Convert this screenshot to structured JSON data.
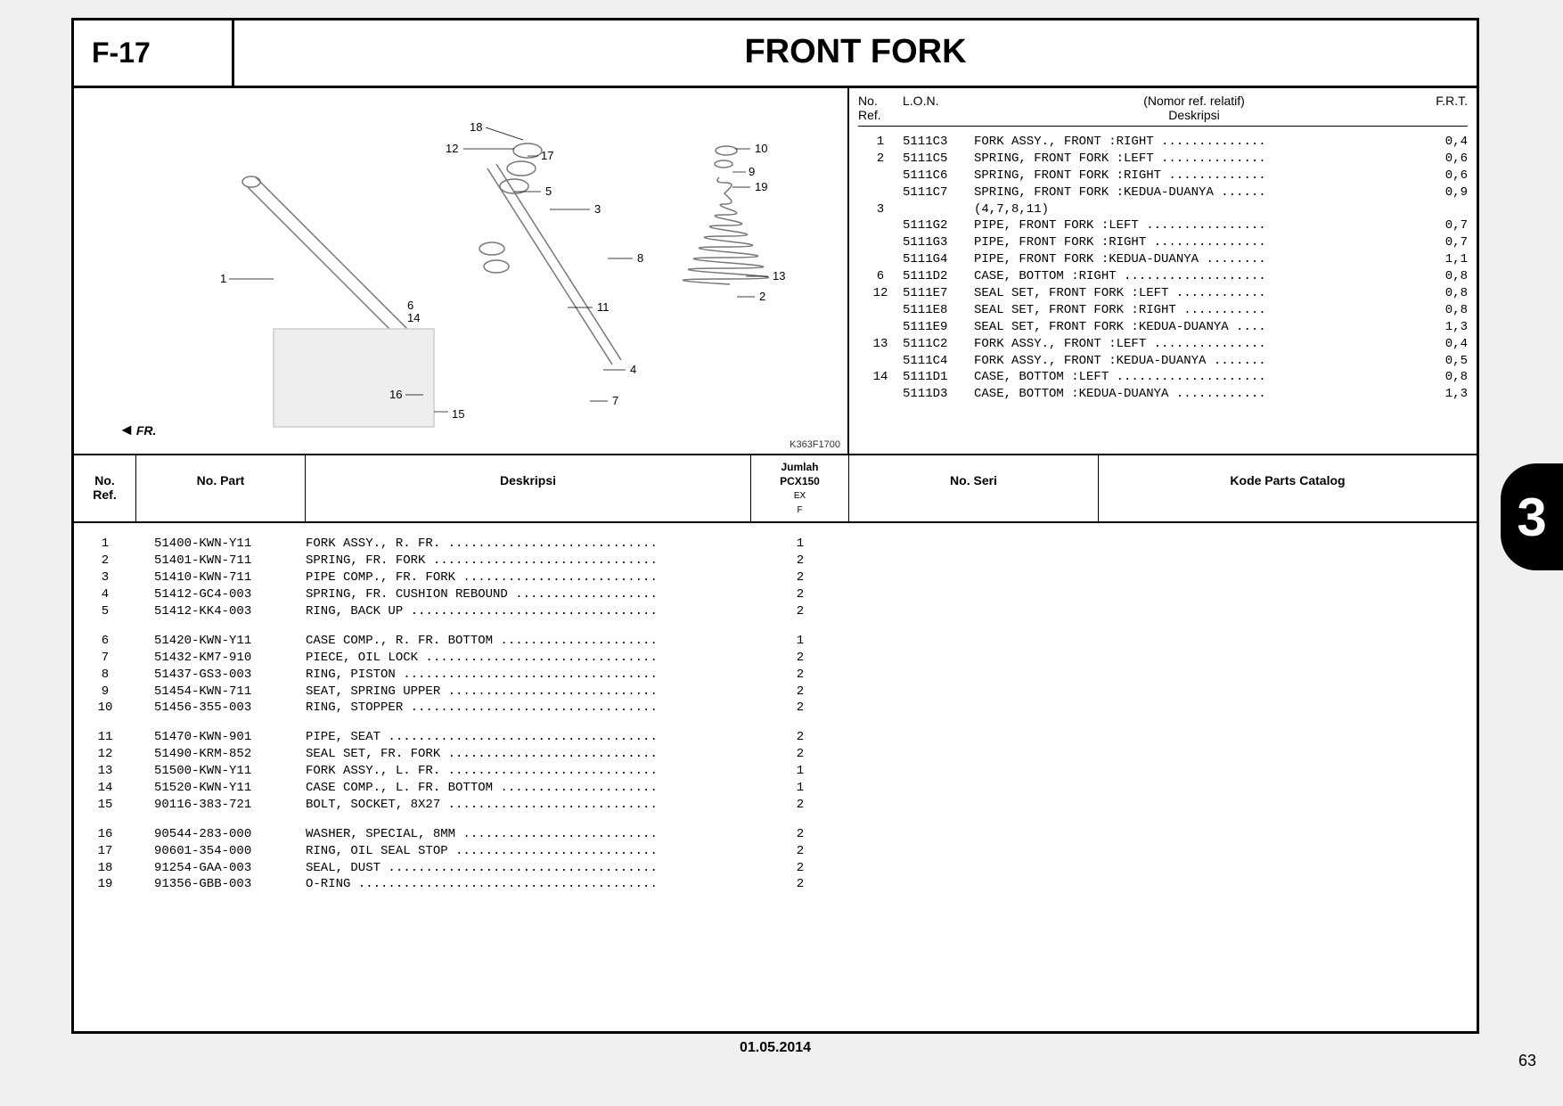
{
  "section_code": "F-17",
  "title": "FRONT FORK",
  "diagram_code": "K363F1700",
  "fr_label": "FR.",
  "lon_header": {
    "ref": "No.\nRef.",
    "lon": "L.O.N.",
    "desc_top": "(Nomor ref. relatif)",
    "desc_bottom": "Deskripsi",
    "frt": "F.R.T."
  },
  "lon_rows": [
    {
      "ref": "1",
      "lon": "5111C3",
      "desc": "FORK ASSY., FRONT :RIGHT",
      "frt": "0,4"
    },
    {
      "ref": "2",
      "lon": "5111C5",
      "desc": "SPRING, FRONT FORK :LEFT",
      "frt": "0,6"
    },
    {
      "ref": "",
      "lon": "5111C6",
      "desc": "SPRING, FRONT FORK :RIGHT",
      "frt": "0,6"
    },
    {
      "ref": "",
      "lon": "5111C7",
      "desc": "SPRING, FRONT FORK :KEDUA-DUANYA",
      "frt": "0,9"
    },
    {
      "ref": "3",
      "lon": "",
      "desc": "(4,7,8,11)",
      "frt": ""
    },
    {
      "ref": "",
      "lon": "5111G2",
      "desc": "PIPE, FRONT FORK :LEFT",
      "frt": "0,7"
    },
    {
      "ref": "",
      "lon": "5111G3",
      "desc": "PIPE, FRONT FORK :RIGHT",
      "frt": "0,7"
    },
    {
      "ref": "",
      "lon": "5111G4",
      "desc": "PIPE, FRONT FORK :KEDUA-DUANYA",
      "frt": "1,1"
    },
    {
      "ref": "6",
      "lon": "5111D2",
      "desc": "CASE, BOTTOM :RIGHT",
      "frt": "0,8"
    },
    {
      "ref": "12",
      "lon": "5111E7",
      "desc": "SEAL SET, FRONT FORK :LEFT",
      "frt": "0,8"
    },
    {
      "ref": "",
      "lon": "5111E8",
      "desc": "SEAL SET, FRONT FORK :RIGHT",
      "frt": "0,8"
    },
    {
      "ref": "",
      "lon": "5111E9",
      "desc": "SEAL SET, FRONT FORK :KEDUA-DUANYA",
      "frt": "1,3"
    },
    {
      "ref": "13",
      "lon": "5111C2",
      "desc": "FORK ASSY., FRONT :LEFT",
      "frt": "0,4"
    },
    {
      "ref": "",
      "lon": "5111C4",
      "desc": "FORK ASSY., FRONT :KEDUA-DUANYA",
      "frt": "0,5"
    },
    {
      "ref": "14",
      "lon": "5111D1",
      "desc": "CASE, BOTTOM :LEFT",
      "frt": "0,8"
    },
    {
      "ref": "",
      "lon": "5111D3",
      "desc": "CASE, BOTTOM :KEDUA-DUANYA",
      "frt": "1,3"
    }
  ],
  "table_header": {
    "ref": "No.\nRef.",
    "part": "No. Part",
    "desc": "Deskripsi",
    "qty_l1": "Jumlah",
    "qty_l2": "PCX150",
    "qty_l3": "EX",
    "qty_l4": "F",
    "seri": "No. Seri",
    "kode": "Kode Parts Catalog"
  },
  "parts": [
    [
      {
        "ref": "1",
        "part": "51400-KWN-Y11",
        "desc": "FORK ASSY., R. FR.",
        "qty": "1"
      },
      {
        "ref": "2",
        "part": "51401-KWN-711",
        "desc": "SPRING, FR. FORK",
        "qty": "2"
      },
      {
        "ref": "3",
        "part": "51410-KWN-711",
        "desc": "PIPE COMP., FR. FORK",
        "qty": "2"
      },
      {
        "ref": "4",
        "part": "51412-GC4-003",
        "desc": "SPRING, FR. CUSHION REBOUND",
        "qty": "2"
      },
      {
        "ref": "5",
        "part": "51412-KK4-003",
        "desc": "RING, BACK UP",
        "qty": "2"
      }
    ],
    [
      {
        "ref": "6",
        "part": "51420-KWN-Y11",
        "desc": "CASE COMP., R. FR. BOTTOM",
        "qty": "1"
      },
      {
        "ref": "7",
        "part": "51432-KM7-910",
        "desc": "PIECE, OIL LOCK",
        "qty": "2"
      },
      {
        "ref": "8",
        "part": "51437-GS3-003",
        "desc": "RING, PISTON",
        "qty": "2"
      },
      {
        "ref": "9",
        "part": "51454-KWN-711",
        "desc": "SEAT, SPRING UPPER",
        "qty": "2"
      },
      {
        "ref": "10",
        "part": "51456-355-003",
        "desc": "RING, STOPPER",
        "qty": "2"
      }
    ],
    [
      {
        "ref": "11",
        "part": "51470-KWN-901",
        "desc": "PIPE, SEAT",
        "qty": "2"
      },
      {
        "ref": "12",
        "part": "51490-KRM-852",
        "desc": "SEAL SET, FR. FORK",
        "qty": "2"
      },
      {
        "ref": "13",
        "part": "51500-KWN-Y11",
        "desc": "FORK ASSY., L. FR.",
        "qty": "1"
      },
      {
        "ref": "14",
        "part": "51520-KWN-Y11",
        "desc": "CASE COMP., L. FR. BOTTOM",
        "qty": "1"
      },
      {
        "ref": "15",
        "part": "90116-383-721",
        "desc": "BOLT, SOCKET, 8X27",
        "qty": "2"
      }
    ],
    [
      {
        "ref": "16",
        "part": "90544-283-000",
        "desc": "WASHER, SPECIAL, 8MM",
        "qty": "2"
      },
      {
        "ref": "17",
        "part": "90601-354-000",
        "desc": "RING, OIL SEAL STOP",
        "qty": "2"
      },
      {
        "ref": "18",
        "part": "91254-GAA-003",
        "desc": "SEAL, DUST",
        "qty": "2"
      },
      {
        "ref": "19",
        "part": "91356-GBB-003",
        "desc": "O-RING",
        "qty": "2"
      }
    ]
  ],
  "footer_date": "01.05.2014",
  "side_tab": "3",
  "page_number": "63",
  "callouts": [
    "1",
    "2",
    "3",
    "4",
    "5",
    "6",
    "7",
    "8",
    "9",
    "10",
    "11",
    "12",
    "13",
    "14",
    "15",
    "16",
    "17",
    "18",
    "19"
  ],
  "dots_width_lon": 38,
  "dots_width_parts": 46
}
